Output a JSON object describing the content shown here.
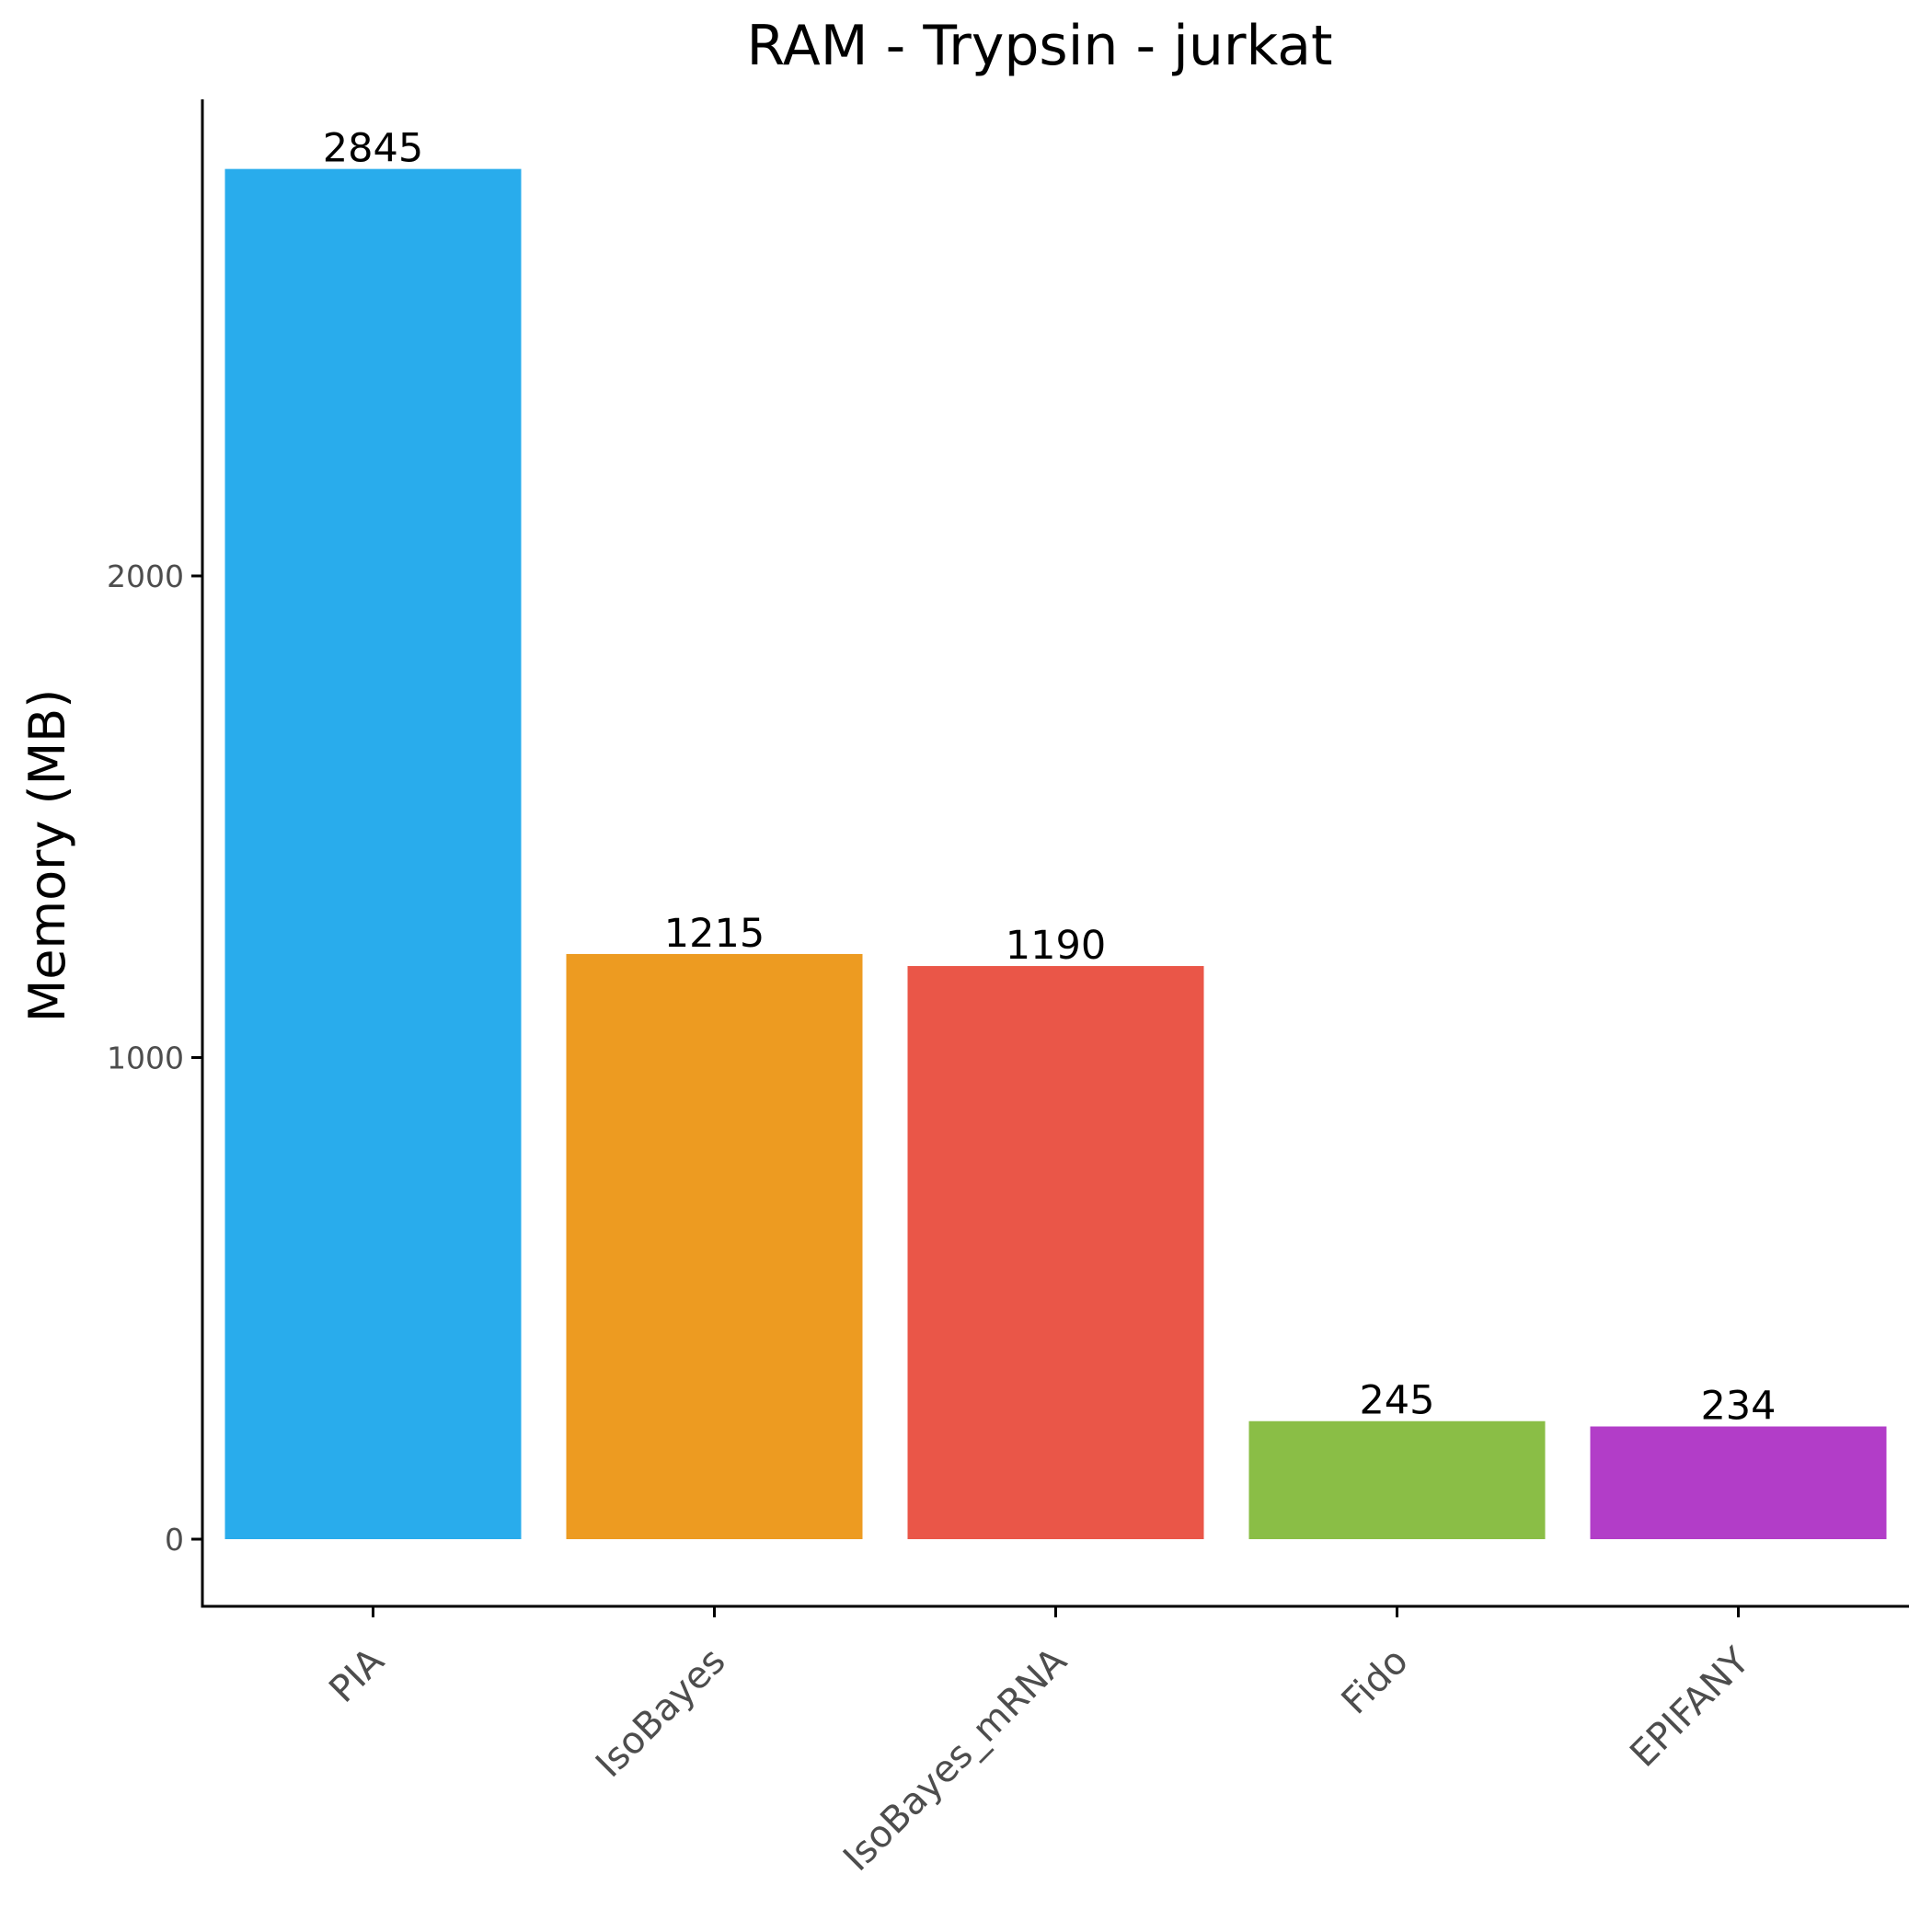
{
  "chart_data": {
    "type": "bar",
    "title": "RAM - Trypsin - jurkat",
    "xlabel": "",
    "ylabel": "Memory (MB)",
    "categories": [
      "PIA",
      "IsoBayes",
      "IsoBayes_mRNA",
      "Fido",
      "EPIFANY"
    ],
    "values": [
      2845,
      1215,
      1190,
      245,
      234
    ],
    "data_labels": [
      "2845",
      "1215",
      "1190",
      "245",
      "234"
    ],
    "colors": [
      "#29ACEC",
      "#ED9B21",
      "#EA5648",
      "#8ABE46",
      "#B23DC8"
    ],
    "yticks": [
      0,
      1000,
      2000
    ],
    "ytick_labels": [
      "0",
      "1000",
      "2000"
    ],
    "ylim": [
      -142,
      3000
    ],
    "grid": false,
    "legend": "none"
  }
}
